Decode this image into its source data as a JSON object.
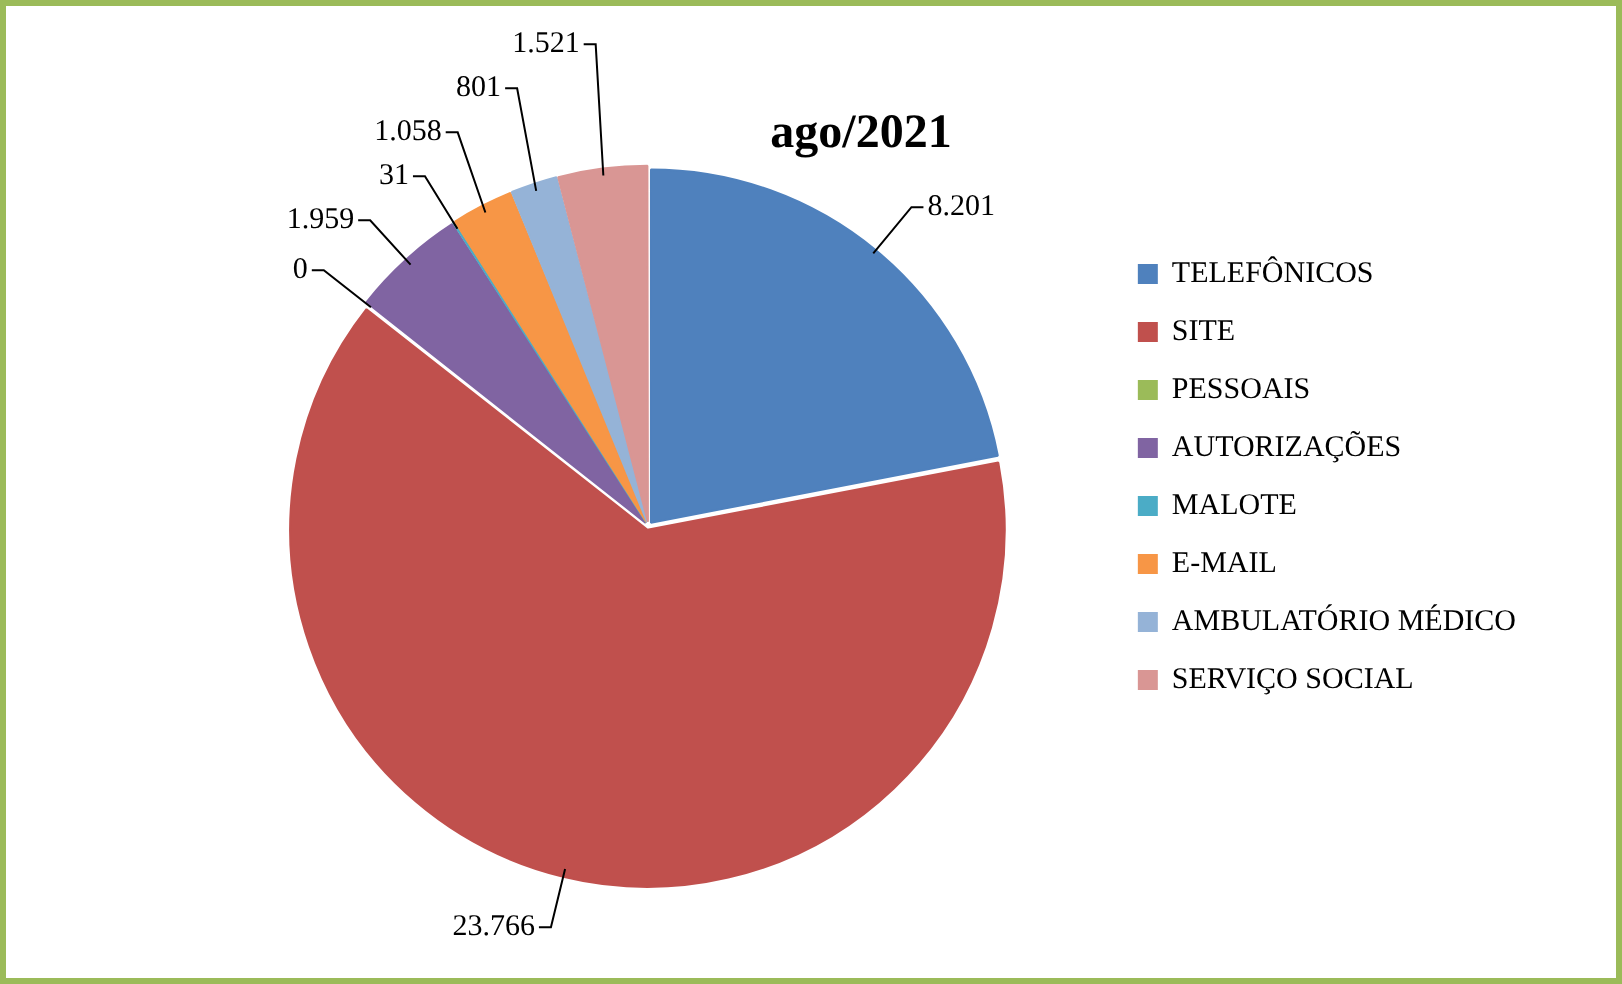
{
  "chart_data": {
    "type": "pie",
    "title": "ago/2021",
    "categories": [
      "TELEFÔNICOS",
      "SITE",
      "PESSOAIS",
      "AUTORIZAÇÕES",
      "MALOTE",
      "E-MAIL",
      "AMBULATÓRIO MÉDICO",
      "SERVIÇO SOCIAL"
    ],
    "values": [
      8201,
      23766,
      0,
      1959,
      31,
      1058,
      801,
      1521
    ],
    "colors": [
      "#4f81bd",
      "#c0504d",
      "#9bbb59",
      "#8064a2",
      "#4bacc6",
      "#f79646",
      "#95b3d7",
      "#d99694"
    ],
    "value_labels": [
      "8.201",
      "23.766",
      "0",
      "1.959",
      "31",
      "1.058",
      "801",
      "1.521"
    ],
    "legend": "right"
  }
}
